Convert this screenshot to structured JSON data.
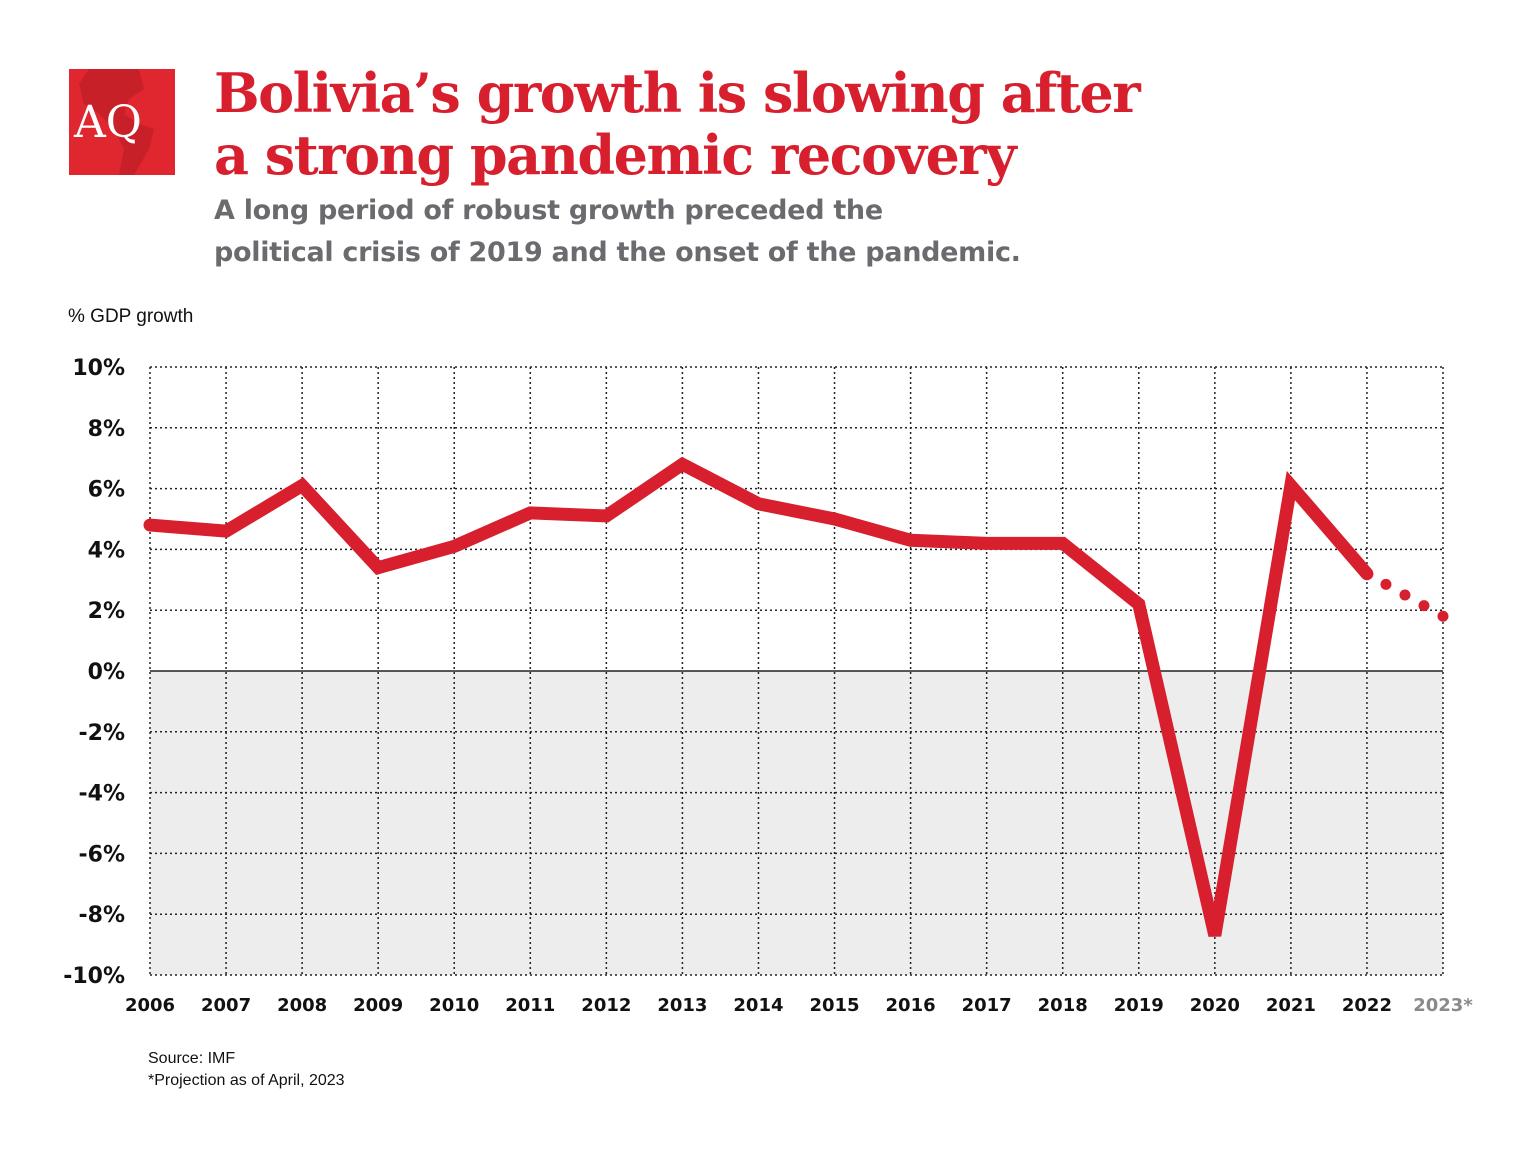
{
  "header": {
    "logo_text": "AQ",
    "title_line1": "Bolivia’s growth is slowing after",
    "title_line2": "a strong pandemic recovery",
    "subtitle_line1": "A long period of robust growth preceded the",
    "subtitle_line2": "political crisis of 2019 and the onset of the pandemic."
  },
  "footer": {
    "source": "Source: IMF",
    "note": "*Projection as of April, 2023"
  },
  "colors": {
    "line": "#d81f2e",
    "negative_region": "#ededed",
    "projection_label": "#8a8a8a"
  },
  "chart_data": {
    "type": "line",
    "ylabel": "% GDP growth",
    "ylim": [
      -10,
      10
    ],
    "yticks": [
      "10%",
      "8%",
      "6%",
      "4%",
      "2%",
      "0%",
      "-2%",
      "-4%",
      "-6%",
      "-8%",
      "-10%"
    ],
    "ytick_values": [
      10,
      8,
      6,
      4,
      2,
      0,
      -2,
      -4,
      -6,
      -8,
      -10
    ],
    "categories": [
      "2006",
      "2007",
      "2008",
      "2009",
      "2010",
      "2011",
      "2012",
      "2013",
      "2014",
      "2015",
      "2016",
      "2017",
      "2018",
      "2019",
      "2020",
      "2021",
      "2022",
      "2023*"
    ],
    "values": [
      4.8,
      4.6,
      6.1,
      3.4,
      4.1,
      5.2,
      5.1,
      6.8,
      5.5,
      5.0,
      4.3,
      4.2,
      4.2,
      2.2,
      -8.7,
      6.1,
      3.2,
      1.8
    ],
    "projection_from": "2022",
    "grid": true,
    "grid_style": "dotted"
  }
}
